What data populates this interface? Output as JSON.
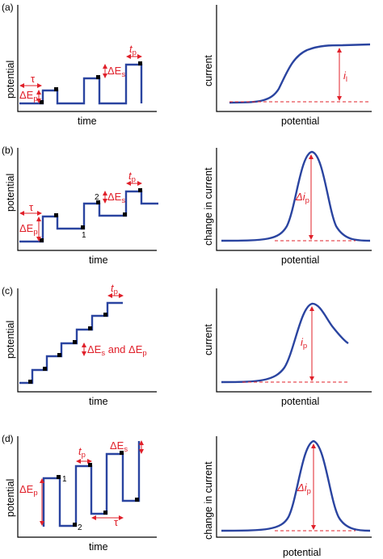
{
  "panels": {
    "a": {
      "label": "(a)",
      "left_ylabel": "potential",
      "left_xlabel": "time",
      "right_ylabel": "current",
      "right_xlabel": "potential",
      "tau": "τ",
      "dEp": "ΔE",
      "dEp_sub": "p",
      "dEs": "ΔE",
      "dEs_sub": "s",
      "tp": "t",
      "tp_sub": "p",
      "il": "i",
      "il_sub": "l"
    },
    "b": {
      "label": "(b)",
      "left_ylabel": "potential",
      "left_xlabel": "time",
      "right_ylabel": "change in current",
      "right_xlabel": "potential",
      "tau": "τ",
      "dEp": "ΔE",
      "dEp_sub": "p",
      "dEs": "ΔE",
      "dEs_sub": "s",
      "tp": "t",
      "tp_sub": "p",
      "pt1": "1",
      "pt2": "2",
      "dip": "Δi",
      "dip_sub": "p"
    },
    "c": {
      "label": "(c)",
      "left_ylabel": "potential",
      "left_xlabel": "time",
      "right_ylabel": "current",
      "right_xlabel": "potential",
      "tp": "t",
      "tp_sub": "p",
      "dEs": "ΔE",
      "dEs_sub": "s",
      "and": " and ",
      "dEp": "ΔE",
      "dEp_sub": "p",
      "ip": "i",
      "ip_sub": "p"
    },
    "d": {
      "label": "(d)",
      "left_ylabel": "potential",
      "left_xlabel": "time",
      "right_ylabel": "change in current",
      "right_xlabel": "potential",
      "tp": "t",
      "tp_sub": "p",
      "dEs": "ΔE",
      "dEs_sub": "s",
      "dEp": "ΔE",
      "dEp_sub": "p",
      "pt1": "1",
      "pt2": "2",
      "tau": "τ",
      "dip": "Δi",
      "dip_sub": "p"
    }
  }
}
